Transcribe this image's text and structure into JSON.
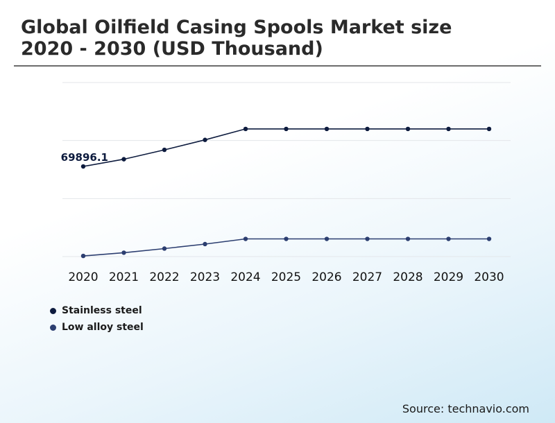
{
  "title": "Global Oilfield Casing Spools Market size 2020 - 2030 (USD Thousand)",
  "source": "Source: technavio.com",
  "chart_data": {
    "type": "line",
    "title": "Global Oilfield Casing Spools Market size 2020 - 2030 (USD Thousand)",
    "x": [
      "2020",
      "2021",
      "2022",
      "2023",
      "2024",
      "2025",
      "2026",
      "2027",
      "2028",
      "2029",
      "2030"
    ],
    "xlabel": "",
    "ylabel": "",
    "ylim": [
      0,
      135000
    ],
    "grid": true,
    "legend_position": "bottom-left",
    "series": [
      {
        "name": "Stainless steel",
        "color": "#0d1b3e",
        "values": [
          69896.1,
          75500,
          82800,
          90500,
          99000,
          99000,
          99000,
          99000,
          99000,
          99000,
          99000
        ]
      },
      {
        "name": "Low alloy steel",
        "color": "#2c3e70",
        "values": [
          500,
          3000,
          6200,
          9700,
          13700,
          13700,
          13700,
          13700,
          13700,
          13700,
          13700
        ]
      }
    ],
    "annotations": [
      {
        "series": 0,
        "index": 0,
        "text": "69896.1"
      }
    ]
  }
}
